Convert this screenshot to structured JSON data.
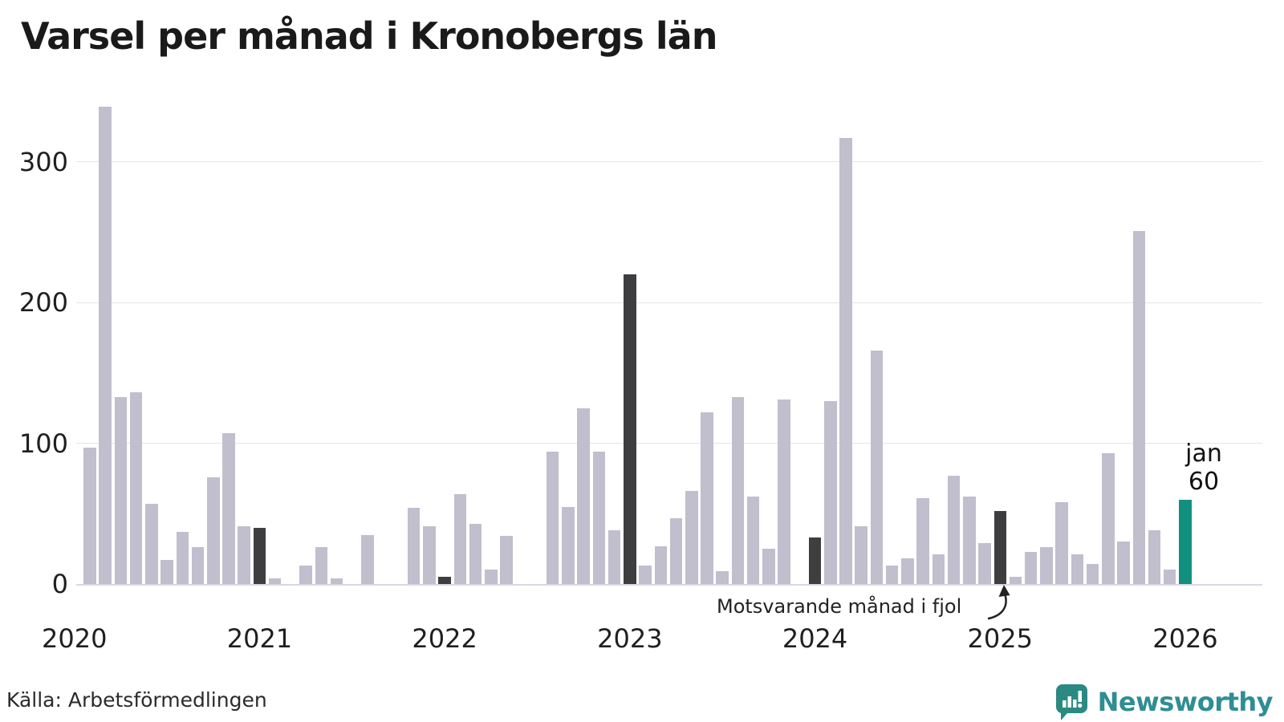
{
  "title": "Varsel per månad i Kronobergs län",
  "source": "Källa: Arbetsförmedlingen",
  "branding": {
    "name": "Newsworthy",
    "icon": "newsworthy-speech-bubble-chart-icon"
  },
  "annotation": {
    "text": "Motsvarande månad i fjol"
  },
  "current_label": {
    "line1": "jan",
    "line2": "60"
  },
  "colors": {
    "bar_regular": "#c1becd",
    "bar_january": "#3e3e40",
    "bar_current": "#12907f",
    "gridline": "#e4e3eb",
    "baseline": "#d9d8e2",
    "text": "#1f1f1f",
    "brand_teal": "#2e8e92",
    "brand_icon": "#2a8a82"
  },
  "chart_data": {
    "type": "bar",
    "title": "Varsel per månad i Kronobergs län",
    "xlabel": "",
    "ylabel": "",
    "unit": "varsel (antal personer)",
    "grid": "horizontal",
    "legend_position": "none",
    "y_ticks": [
      0,
      100,
      200,
      300
    ],
    "ylim": [
      0,
      345
    ],
    "x_year_labels": [
      "2020",
      "2021",
      "2022",
      "2023",
      "2024",
      "2025",
      "2026"
    ],
    "highlight": {
      "current_month": "2026-01",
      "current_value": 60,
      "comparison_januaries": [
        "2021-01",
        "2022-01",
        "2023-01",
        "2024-01",
        "2025-01"
      ]
    },
    "months": [
      {
        "month": "2020-01",
        "value": null,
        "role": "empty"
      },
      {
        "month": "2020-02",
        "value": 97,
        "role": "regular"
      },
      {
        "month": "2020-03",
        "value": 339,
        "role": "regular"
      },
      {
        "month": "2020-04",
        "value": 133,
        "role": "regular"
      },
      {
        "month": "2020-05",
        "value": 136,
        "role": "regular"
      },
      {
        "month": "2020-06",
        "value": 57,
        "role": "regular"
      },
      {
        "month": "2020-07",
        "value": 17,
        "role": "regular"
      },
      {
        "month": "2020-08",
        "value": 37,
        "role": "regular"
      },
      {
        "month": "2020-09",
        "value": 26,
        "role": "regular"
      },
      {
        "month": "2020-10",
        "value": 76,
        "role": "regular"
      },
      {
        "month": "2020-11",
        "value": 107,
        "role": "regular"
      },
      {
        "month": "2020-12",
        "value": 41,
        "role": "regular"
      },
      {
        "month": "2021-01",
        "value": 40,
        "role": "january"
      },
      {
        "month": "2021-02",
        "value": 4,
        "role": "regular"
      },
      {
        "month": "2021-03",
        "value": 0,
        "role": "regular"
      },
      {
        "month": "2021-04",
        "value": 13,
        "role": "regular"
      },
      {
        "month": "2021-05",
        "value": 26,
        "role": "regular"
      },
      {
        "month": "2021-06",
        "value": 4,
        "role": "regular"
      },
      {
        "month": "2021-07",
        "value": 0,
        "role": "regular"
      },
      {
        "month": "2021-08",
        "value": 35,
        "role": "regular"
      },
      {
        "month": "2021-09",
        "value": 0,
        "role": "regular"
      },
      {
        "month": "2021-10",
        "value": 0,
        "role": "regular"
      },
      {
        "month": "2021-11",
        "value": 54,
        "role": "regular"
      },
      {
        "month": "2021-12",
        "value": 41,
        "role": "regular"
      },
      {
        "month": "2022-01",
        "value": 5,
        "role": "january"
      },
      {
        "month": "2022-02",
        "value": 64,
        "role": "regular"
      },
      {
        "month": "2022-03",
        "value": 43,
        "role": "regular"
      },
      {
        "month": "2022-04",
        "value": 10,
        "role": "regular"
      },
      {
        "month": "2022-05",
        "value": 34,
        "role": "regular"
      },
      {
        "month": "2022-06",
        "value": 0,
        "role": "regular"
      },
      {
        "month": "2022-07",
        "value": 0,
        "role": "regular"
      },
      {
        "month": "2022-08",
        "value": 94,
        "role": "regular"
      },
      {
        "month": "2022-09",
        "value": 55,
        "role": "regular"
      },
      {
        "month": "2022-10",
        "value": 125,
        "role": "regular"
      },
      {
        "month": "2022-11",
        "value": 94,
        "role": "regular"
      },
      {
        "month": "2022-12",
        "value": 38,
        "role": "regular"
      },
      {
        "month": "2023-01",
        "value": 220,
        "role": "january"
      },
      {
        "month": "2023-02",
        "value": 13,
        "role": "regular"
      },
      {
        "month": "2023-03",
        "value": 27,
        "role": "regular"
      },
      {
        "month": "2023-04",
        "value": 47,
        "role": "regular"
      },
      {
        "month": "2023-05",
        "value": 66,
        "role": "regular"
      },
      {
        "month": "2023-06",
        "value": 122,
        "role": "regular"
      },
      {
        "month": "2023-07",
        "value": 9,
        "role": "regular"
      },
      {
        "month": "2023-08",
        "value": 133,
        "role": "regular"
      },
      {
        "month": "2023-09",
        "value": 62,
        "role": "regular"
      },
      {
        "month": "2023-10",
        "value": 25,
        "role": "regular"
      },
      {
        "month": "2023-11",
        "value": 131,
        "role": "regular"
      },
      {
        "month": "2023-12",
        "value": 0,
        "role": "regular"
      },
      {
        "month": "2024-01",
        "value": 33,
        "role": "january"
      },
      {
        "month": "2024-02",
        "value": 130,
        "role": "regular"
      },
      {
        "month": "2024-03",
        "value": 317,
        "role": "regular"
      },
      {
        "month": "2024-04",
        "value": 41,
        "role": "regular"
      },
      {
        "month": "2024-05",
        "value": 166,
        "role": "regular"
      },
      {
        "month": "2024-06",
        "value": 13,
        "role": "regular"
      },
      {
        "month": "2024-07",
        "value": 18,
        "role": "regular"
      },
      {
        "month": "2024-08",
        "value": 61,
        "role": "regular"
      },
      {
        "month": "2024-09",
        "value": 21,
        "role": "regular"
      },
      {
        "month": "2024-10",
        "value": 77,
        "role": "regular"
      },
      {
        "month": "2024-11",
        "value": 62,
        "role": "regular"
      },
      {
        "month": "2024-12",
        "value": 29,
        "role": "regular"
      },
      {
        "month": "2025-01",
        "value": 52,
        "role": "january"
      },
      {
        "month": "2025-02",
        "value": 5,
        "role": "regular"
      },
      {
        "month": "2025-03",
        "value": 23,
        "role": "regular"
      },
      {
        "month": "2025-04",
        "value": 26,
        "role": "regular"
      },
      {
        "month": "2025-05",
        "value": 58,
        "role": "regular"
      },
      {
        "month": "2025-06",
        "value": 21,
        "role": "regular"
      },
      {
        "month": "2025-07",
        "value": 14,
        "role": "regular"
      },
      {
        "month": "2025-08",
        "value": 93,
        "role": "regular"
      },
      {
        "month": "2025-09",
        "value": 30,
        "role": "regular"
      },
      {
        "month": "2025-10",
        "value": 251,
        "role": "regular"
      },
      {
        "month": "2025-11",
        "value": 38,
        "role": "regular"
      },
      {
        "month": "2025-12",
        "value": 10,
        "role": "regular"
      },
      {
        "month": "2026-01",
        "value": 60,
        "role": "current"
      }
    ]
  }
}
